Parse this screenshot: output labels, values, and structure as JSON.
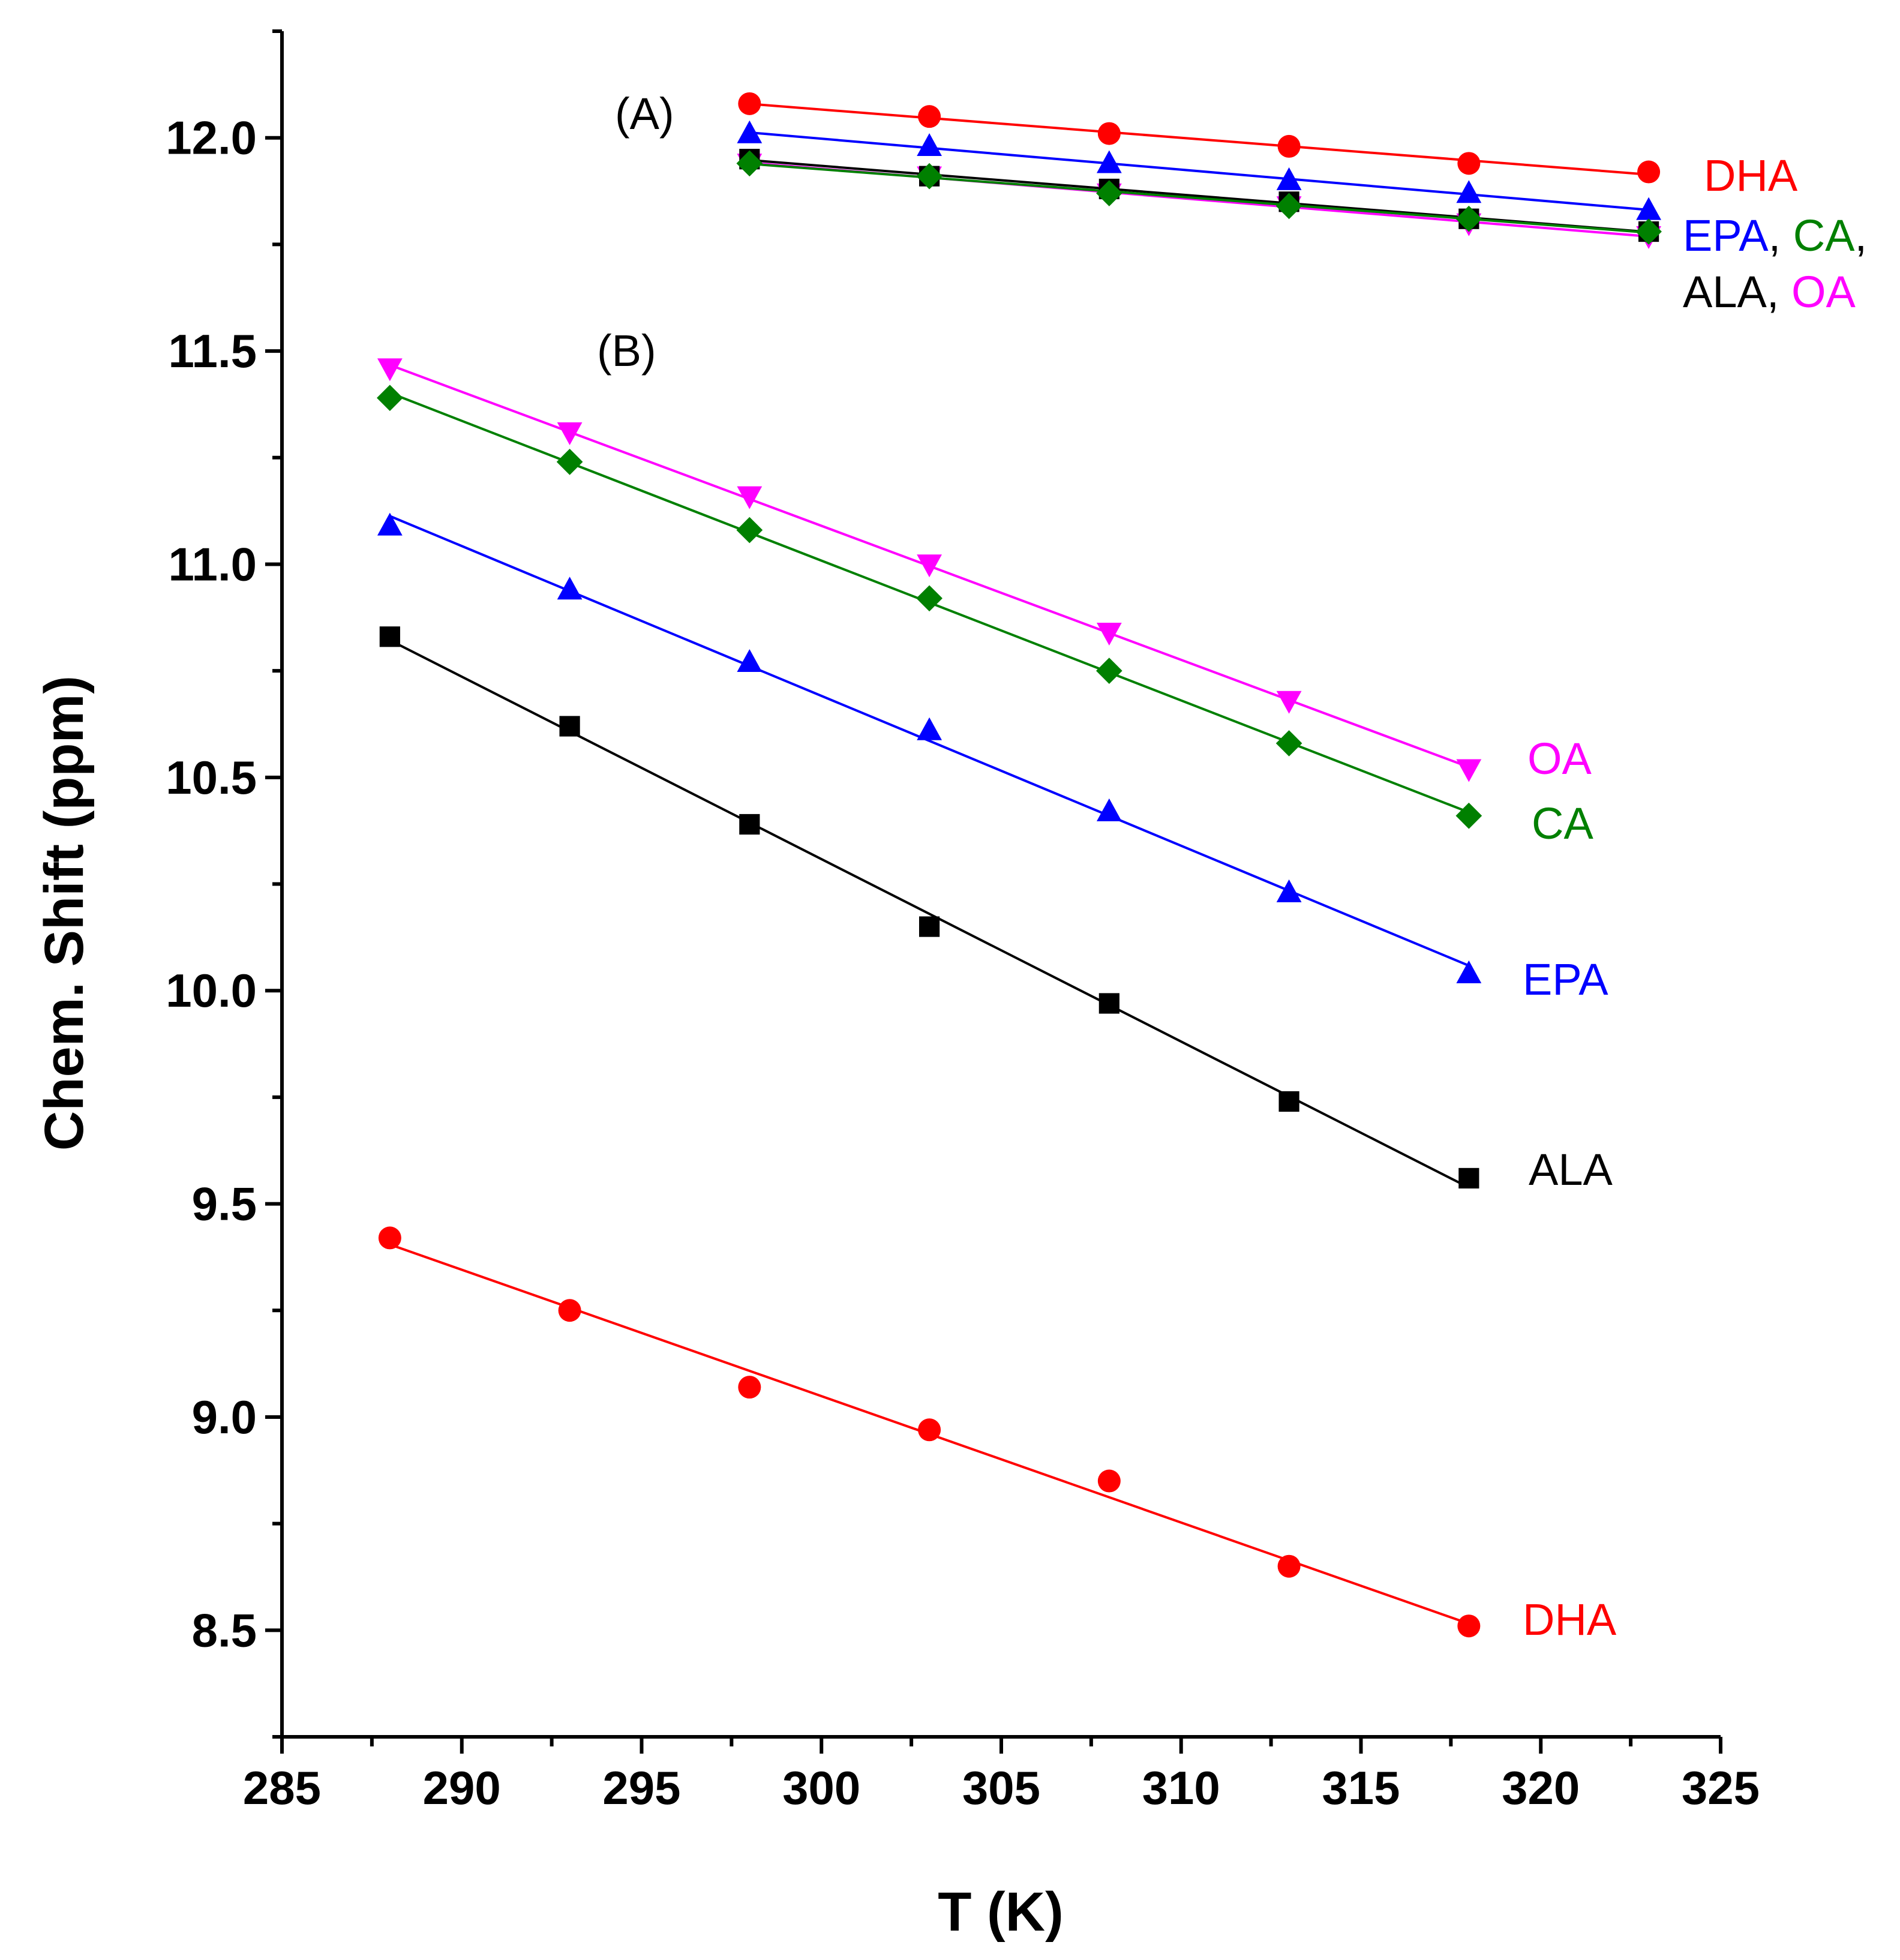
{
  "chart_data": {
    "type": "scatter",
    "title": "",
    "xlabel": "T (K)",
    "ylabel": "Chem. Shift (ppm)",
    "xlim": [
      285,
      325
    ],
    "ylim": [
      8.25,
      12.25
    ],
    "x_ticks": [
      "285",
      "290",
      "295",
      "300",
      "305",
      "310",
      "315",
      "320",
      "325"
    ],
    "y_ticks": [
      "8.5",
      "9.0",
      "9.5",
      "10.0",
      "10.5",
      "11.0",
      "11.5",
      "12.0"
    ],
    "panel_labels": [
      {
        "id": "panel-label-a",
        "text": "(A)"
      },
      {
        "id": "panel-label-b",
        "text": "(B)"
      }
    ],
    "series": [
      {
        "name": "A-DHA",
        "group": "A",
        "label": "DHA",
        "marker": "circle",
        "color": "#ff0000",
        "x": [
          298,
          303,
          308,
          313,
          318,
          323
        ],
        "y": [
          12.08,
          12.05,
          12.01,
          11.98,
          11.94,
          11.92
        ]
      },
      {
        "name": "A-EPA",
        "group": "A",
        "label": "EPA",
        "marker": "triangle-up",
        "color": "#0000ff",
        "x": [
          298,
          303,
          308,
          313,
          318,
          323
        ],
        "y": [
          12.01,
          11.98,
          11.94,
          11.9,
          11.87,
          11.83
        ]
      },
      {
        "name": "A-OA",
        "group": "A",
        "label": "OA",
        "marker": "triangle-down",
        "color": "#ff00ff",
        "x": [
          298,
          303,
          308,
          313,
          318,
          323
        ],
        "y": [
          11.94,
          11.91,
          11.87,
          11.84,
          11.8,
          11.77
        ]
      },
      {
        "name": "A-ALA",
        "group": "A",
        "label": "ALA",
        "marker": "square",
        "color": "#000000",
        "x": [
          298,
          303,
          308,
          313,
          318,
          323
        ],
        "y": [
          11.95,
          11.91,
          11.88,
          11.85,
          11.81,
          11.78
        ]
      },
      {
        "name": "A-CA",
        "group": "A",
        "label": "CA",
        "marker": "diamond",
        "color": "#008000",
        "x": [
          298,
          303,
          308,
          313,
          318,
          323
        ],
        "y": [
          11.94,
          11.91,
          11.87,
          11.84,
          11.81,
          11.78
        ]
      },
      {
        "name": "B-OA",
        "group": "B",
        "label": "OA",
        "marker": "triangle-down",
        "color": "#ff00ff",
        "x": [
          288,
          293,
          298,
          303,
          308,
          313,
          318
        ],
        "y": [
          11.46,
          11.31,
          11.16,
          11.0,
          10.84,
          10.68,
          10.52
        ]
      },
      {
        "name": "B-CA",
        "group": "B",
        "label": "CA",
        "marker": "diamond",
        "color": "#008000",
        "x": [
          288,
          293,
          298,
          303,
          308,
          313,
          318
        ],
        "y": [
          11.39,
          11.24,
          11.08,
          10.92,
          10.75,
          10.58,
          10.41
        ]
      },
      {
        "name": "B-EPA",
        "group": "B",
        "label": "EPA",
        "marker": "triangle-up",
        "color": "#0000ff",
        "x": [
          288,
          293,
          298,
          303,
          308,
          313,
          318
        ],
        "y": [
          11.09,
          10.94,
          10.77,
          10.61,
          10.42,
          10.23,
          10.04
        ]
      },
      {
        "name": "B-ALA",
        "group": "B",
        "label": "ALA",
        "marker": "square",
        "color": "#000000",
        "x": [
          288,
          293,
          298,
          303,
          308,
          313,
          318
        ],
        "y": [
          10.83,
          10.62,
          10.39,
          10.15,
          9.97,
          9.74,
          9.56
        ]
      },
      {
        "name": "B-DHA",
        "group": "B",
        "label": "DHA",
        "marker": "circle",
        "color": "#ff0000",
        "x": [
          288,
          293,
          298,
          303,
          308,
          313,
          318
        ],
        "y": [
          9.42,
          9.25,
          9.07,
          8.97,
          8.85,
          8.65,
          8.51
        ]
      }
    ],
    "annotations": [
      {
        "id": "label-a-dha",
        "parts": [
          {
            "text": "DHA",
            "color": "#ff0000"
          }
        ]
      },
      {
        "id": "label-a-epa-ca",
        "parts": [
          {
            "text": "EPA",
            "color": "#0000ff"
          },
          {
            "text": ", ",
            "color": "#000000"
          },
          {
            "text": "CA",
            "color": "#008000"
          },
          {
            "text": ",",
            "color": "#000000"
          }
        ]
      },
      {
        "id": "label-a-ala-oa",
        "parts": [
          {
            "text": "ALA",
            "color": "#000000"
          },
          {
            "text": ", ",
            "color": "#000000"
          },
          {
            "text": "OA",
            "color": "#ff00ff"
          }
        ]
      },
      {
        "id": "label-b-oa",
        "parts": [
          {
            "text": "OA",
            "color": "#ff00ff"
          }
        ]
      },
      {
        "id": "label-b-ca",
        "parts": [
          {
            "text": "CA",
            "color": "#008000"
          }
        ]
      },
      {
        "id": "label-b-epa",
        "parts": [
          {
            "text": "EPA",
            "color": "#0000ff"
          }
        ]
      },
      {
        "id": "label-b-ala",
        "parts": [
          {
            "text": "ALA",
            "color": "#000000"
          }
        ]
      },
      {
        "id": "label-b-dha",
        "parts": [
          {
            "text": "DHA",
            "color": "#ff0000"
          }
        ]
      }
    ]
  }
}
